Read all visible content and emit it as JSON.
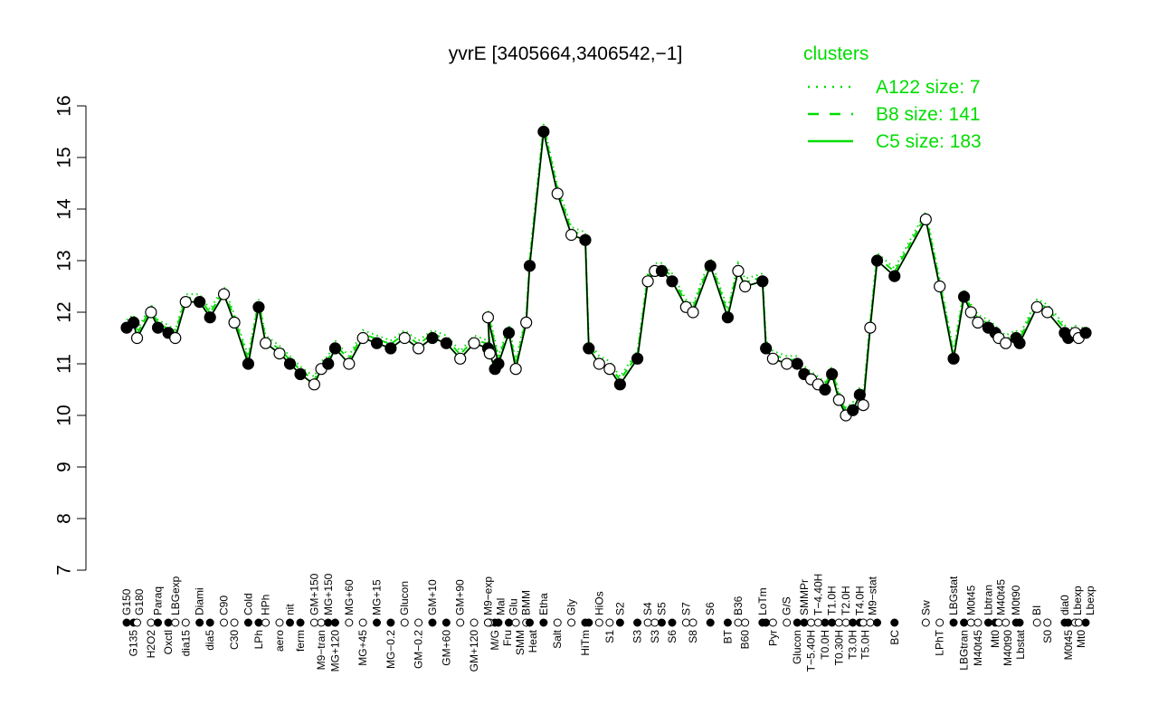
{
  "chart_data": {
    "type": "line",
    "title": "yvrE [3405664,3406542,−1]",
    "xlabel": "",
    "ylabel": "",
    "ylim": [
      7,
      16
    ],
    "yticks": [
      7,
      8,
      9,
      10,
      11,
      12,
      13,
      14,
      15,
      16
    ],
    "grid": false,
    "legend": {
      "title": "clusters",
      "placement": "top-right",
      "entries": [
        {
          "label": "A122 size: 7",
          "style": "dotted"
        },
        {
          "label": "B8 size: 141",
          "style": "dashed"
        },
        {
          "label": "C5 size: 183",
          "style": "solid"
        }
      ]
    },
    "line_color": "#00dd00",
    "points": [
      {
        "x": 0,
        "label": "G150",
        "y": 11.7
      },
      {
        "x": 2,
        "label": "G135",
        "y": 11.8
      },
      {
        "x": 3,
        "label": "G180",
        "y": 11.5
      },
      {
        "x": 7,
        "label": "H2O2",
        "y": 12.0
      },
      {
        "x": 9,
        "label": "Paraq",
        "y": 11.7
      },
      {
        "x": 12,
        "label": "Oxctl",
        "y": 11.6
      },
      {
        "x": 14,
        "label": "LBGexp",
        "y": 11.5
      },
      {
        "x": 17,
        "label": "dia15",
        "y": 12.2
      },
      {
        "x": 21,
        "label": "Diami",
        "y": 12.2
      },
      {
        "x": 24,
        "label": "dia5",
        "y": 11.9
      },
      {
        "x": 28,
        "label": "C90",
        "y": 12.35
      },
      {
        "x": 31,
        "label": "C30",
        "y": 11.8
      },
      {
        "x": 35,
        "label": "Cold",
        "y": 11.0
      },
      {
        "x": 38,
        "label": "LPh",
        "y": 12.1
      },
      {
        "x": 40,
        "label": "HPh",
        "y": 11.4
      },
      {
        "x": 44,
        "label": "aero",
        "y": 11.2
      },
      {
        "x": 47,
        "label": "nit",
        "y": 11.0
      },
      {
        "x": 50,
        "label": "ferm",
        "y": 10.8
      },
      {
        "x": 54,
        "label": "GM+150",
        "y": 10.6
      },
      {
        "x": 56,
        "label": "M9−tran",
        "y": 10.9
      },
      {
        "x": 58,
        "label": "MG+150",
        "y": 11.0
      },
      {
        "x": 60,
        "label": "MG+120",
        "y": 11.3
      },
      {
        "x": 64,
        "label": "MG+60",
        "y": 11.0
      },
      {
        "x": 68,
        "label": "MG+45",
        "y": 11.5
      },
      {
        "x": 72,
        "label": "MG+15",
        "y": 11.4
      },
      {
        "x": 76,
        "label": "MG−0.2",
        "y": 11.3
      },
      {
        "x": 80,
        "label": "Glucon",
        "y": 11.5
      },
      {
        "x": 84,
        "label": "GM−0.2",
        "y": 11.3
      },
      {
        "x": 88,
        "label": "GM+10",
        "y": 11.5
      },
      {
        "x": 92,
        "label": "GM+60",
        "y": 11.4
      },
      {
        "x": 96,
        "label": "GM+90",
        "y": 11.1
      },
      {
        "x": 100,
        "label": "GM+120",
        "y": 11.4
      },
      {
        "x": 104,
        "label": "M9−exp",
        "y": 11.3
      },
      {
        "x": 106,
        "label": "M/G",
        "y": 10.9
      },
      {
        "x": 104.5,
        "label": "",
        "y": 11.2
      },
      {
        "x": 104,
        "label": "Mal",
        "y": 11.9
      },
      {
        "x": 107,
        "label": "Fru",
        "y": 11.0
      },
      {
        "x": 110,
        "label": "Glu",
        "y": 11.6
      },
      {
        "x": 112,
        "label": "SMM",
        "y": 10.9
      },
      {
        "x": 115,
        "label": "BMM",
        "y": 11.8
      },
      {
        "x": 116,
        "label": "Heat",
        "y": 12.9
      },
      {
        "x": 120,
        "label": "Etha",
        "y": 15.5
      },
      {
        "x": 124,
        "label": "Salt",
        "y": 14.3
      },
      {
        "x": 128,
        "label": "Gly",
        "y": 13.5
      },
      {
        "x": 132,
        "label": "HiTm",
        "y": 13.4
      },
      {
        "x": 133,
        "label": "",
        "y": 11.3
      },
      {
        "x": 136,
        "label": "HiOs",
        "y": 11.0
      },
      {
        "x": 139,
        "label": "S1",
        "y": 10.9
      },
      {
        "x": 142,
        "label": "S2",
        "y": 10.6
      },
      {
        "x": 147,
        "label": "S3",
        "y": 11.1
      },
      {
        "x": 150,
        "label": "S4",
        "y": 12.6
      },
      {
        "x": 152,
        "label": "S3",
        "y": 12.8
      },
      {
        "x": 154,
        "label": "S5",
        "y": 12.8
      },
      {
        "x": 157,
        "label": "S6",
        "y": 12.6
      },
      {
        "x": 161,
        "label": "S7",
        "y": 12.1
      },
      {
        "x": 163,
        "label": "S8",
        "y": 12.0
      },
      {
        "x": 168,
        "label": "S6",
        "y": 12.9
      },
      {
        "x": 173,
        "label": "BT",
        "y": 11.9
      },
      {
        "x": 176,
        "label": "B36",
        "y": 12.8
      },
      {
        "x": 178,
        "label": "B60",
        "y": 12.5
      },
      {
        "x": 183,
        "label": "LoTm",
        "y": 12.6
      },
      {
        "x": 184,
        "label": "",
        "y": 11.3
      },
      {
        "x": 186,
        "label": "Pyr",
        "y": 11.1
      },
      {
        "x": 190,
        "label": "G/S",
        "y": 11.0
      },
      {
        "x": 193,
        "label": "Glucon",
        "y": 11.0
      },
      {
        "x": 195,
        "label": "SMMPr",
        "y": 10.8
      },
      {
        "x": 197,
        "label": "T−5.40H",
        "y": 10.7
      },
      {
        "x": 199,
        "label": "T−4.40H",
        "y": 10.6
      },
      {
        "x": 201,
        "label": "T0.0H",
        "y": 10.5
      },
      {
        "x": 203,
        "label": "T1.0H",
        "y": 10.8
      },
      {
        "x": 205,
        "label": "T0.30H",
        "y": 10.3
      },
      {
        "x": 207,
        "label": "T2.0H",
        "y": 10.0
      },
      {
        "x": 209,
        "label": "T3.0H",
        "y": 10.1
      },
      {
        "x": 211,
        "label": "T4.0H",
        "y": 10.4
      },
      {
        "x": 212,
        "label": "T5.0H",
        "y": 10.2
      },
      {
        "x": 214,
        "label": "M9−stat",
        "y": 11.7
      },
      {
        "x": 216,
        "label": "",
        "y": 13.0
      },
      {
        "x": 221,
        "label": "BC",
        "y": 12.7
      },
      {
        "x": 230,
        "label": "Sw",
        "y": 13.8
      },
      {
        "x": 234,
        "label": "LPhT",
        "y": 12.5
      },
      {
        "x": 238,
        "label": "LBGstat",
        "y": 11.1
      },
      {
        "x": 241,
        "label": "LBGtran",
        "y": 12.3
      },
      {
        "x": 243,
        "label": "M0t45",
        "y": 12.0
      },
      {
        "x": 245,
        "label": "M40t45",
        "y": 11.8
      },
      {
        "x": 248,
        "label": "Lbtran",
        "y": 11.7
      },
      {
        "x": 250,
        "label": "Mt0",
        "y": 11.6
      },
      {
        "x": 251,
        "label": "M40t45",
        "y": 11.5
      },
      {
        "x": 253,
        "label": "M40t90",
        "y": 11.4
      },
      {
        "x": 256,
        "label": "M0t90",
        "y": 11.5
      },
      {
        "x": 257,
        "label": "Lbstat",
        "y": 11.4
      },
      {
        "x": 262,
        "label": "BI",
        "y": 12.1
      },
      {
        "x": 265,
        "label": "S0",
        "y": 12.0
      },
      {
        "x": 270,
        "label": "dia0",
        "y": 11.6
      },
      {
        "x": 271,
        "label": "M0t45",
        "y": 11.5
      },
      {
        "x": 273,
        "label": "Lbexp",
        "y": 11.6
      },
      {
        "x": 274,
        "label": "Mt0",
        "y": 11.5
      },
      {
        "x": 276,
        "label": "Lbexp",
        "y": 11.6
      }
    ]
  }
}
